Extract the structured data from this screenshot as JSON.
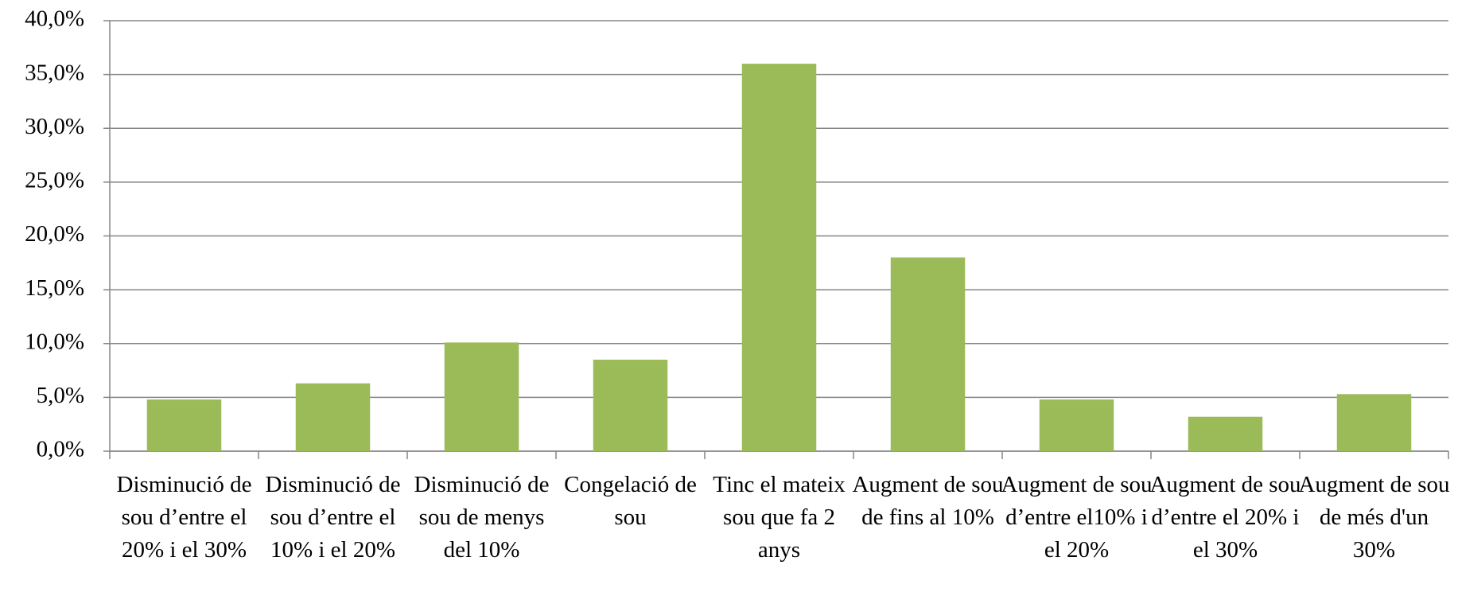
{
  "chart_data": {
    "type": "bar",
    "categories": [
      "Disminució de sou d’entre el 20% i el 30%",
      "Disminució de sou d’entre el 10% i el 20%",
      "Disminució de sou de menys del 10%",
      "Congelació de sou",
      "Tinc el mateix sou que fa 2 anys",
      "Augment de sou de fins al 10%",
      "Augment de sou d’entre el10% i el 20%",
      "Augment de sou d’entre el 20% i el 30%",
      "Augment de sou de més d'un 30%"
    ],
    "values": [
      4.8,
      6.3,
      10.1,
      8.5,
      36.0,
      18.0,
      4.8,
      3.2,
      5.3
    ],
    "color": "#9bbb59",
    "ylim": [
      0,
      40
    ],
    "yticks": [
      {
        "value": 0,
        "label": "0,0%"
      },
      {
        "value": 5,
        "label": "5,0%"
      },
      {
        "value": 10,
        "label": "10,0%"
      },
      {
        "value": 15,
        "label": "15,0%"
      },
      {
        "value": 20,
        "label": "20,0%"
      },
      {
        "value": 25,
        "label": "25,0%"
      },
      {
        "value": 30,
        "label": "30,0%"
      },
      {
        "value": 35,
        "label": "35,0%"
      },
      {
        "value": 40,
        "label": "40,0%"
      }
    ],
    "grid": true
  }
}
